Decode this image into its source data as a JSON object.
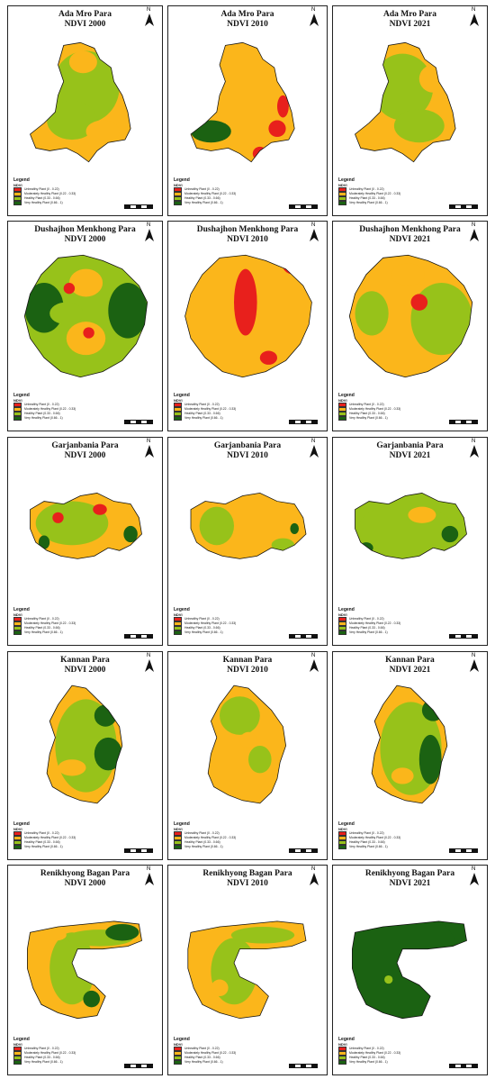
{
  "colors": {
    "unhealthy": "#e8201c",
    "moderate": "#fbb61b",
    "healthy": "#97c21a",
    "very_healthy": "#1b6212",
    "boundary": "#111111"
  },
  "legend": {
    "title": "Legend",
    "subtitle": "NDVI",
    "classes": [
      {
        "label": "Unhealthy Plant (0 - 0.22)",
        "color": "#e8201c"
      },
      {
        "label": "Moderately Healthy Plant (0.22 - 0.33)",
        "color": "#fbb61b"
      },
      {
        "label": "Healthy Plant (0.33 - 0.66)",
        "color": "#97c21a"
      },
      {
        "label": "Very Healthy Plant (0.66 - 1)",
        "color": "#1b6212"
      }
    ]
  },
  "north_arrow": "N",
  "rows": [
    {
      "area": "Ada Mro Para",
      "maps": [
        {
          "title": "Ada Mro Para\nNDVI 2000",
          "year": "2000"
        },
        {
          "title": "Ada Mro Para\nNDVI 2010",
          "year": "2010"
        },
        {
          "title": "Ada Mro Para\nNDVI 2021",
          "year": "2021"
        }
      ]
    },
    {
      "area": "Dushajhon Menkhong Para",
      "maps": [
        {
          "title": "Dushajhon Menkhong Para\nNDVI 2000",
          "year": "2000"
        },
        {
          "title": "Dushajhon Menkhong Para\nNDVI 2010",
          "year": "2010"
        },
        {
          "title": "Dushajhon Menkhong Para\nNDVI 2021",
          "year": "2021"
        }
      ]
    },
    {
      "area": "Garjanbania Para",
      "maps": [
        {
          "title": "Garjanbania Para\nNDVI 2000",
          "year": "2000"
        },
        {
          "title": "Garjanbania Para\nNDVI 2010",
          "year": "2010"
        },
        {
          "title": "Garjanbania Para\nNDVI 2021",
          "year": "2021"
        }
      ]
    },
    {
      "area": "Kannan Para",
      "maps": [
        {
          "title": "Kannan Para\nNDVI 2000",
          "year": "2000"
        },
        {
          "title": "Kannan Para\nNDVI 2010",
          "year": "2010"
        },
        {
          "title": "Kannan Para\nNDVI 2021",
          "year": "2021"
        }
      ]
    },
    {
      "area": "Renikhyong Bagan Para",
      "maps": [
        {
          "title": "Renikhyong Bagan Para\nNDVI 2000",
          "year": "2000"
        },
        {
          "title": "Renikhyong Bagan Para\nNDVI 2010",
          "year": "2010"
        },
        {
          "title": "Renikhyong Bagan Para\nNDVI 2021",
          "year": "2021"
        }
      ]
    }
  ]
}
